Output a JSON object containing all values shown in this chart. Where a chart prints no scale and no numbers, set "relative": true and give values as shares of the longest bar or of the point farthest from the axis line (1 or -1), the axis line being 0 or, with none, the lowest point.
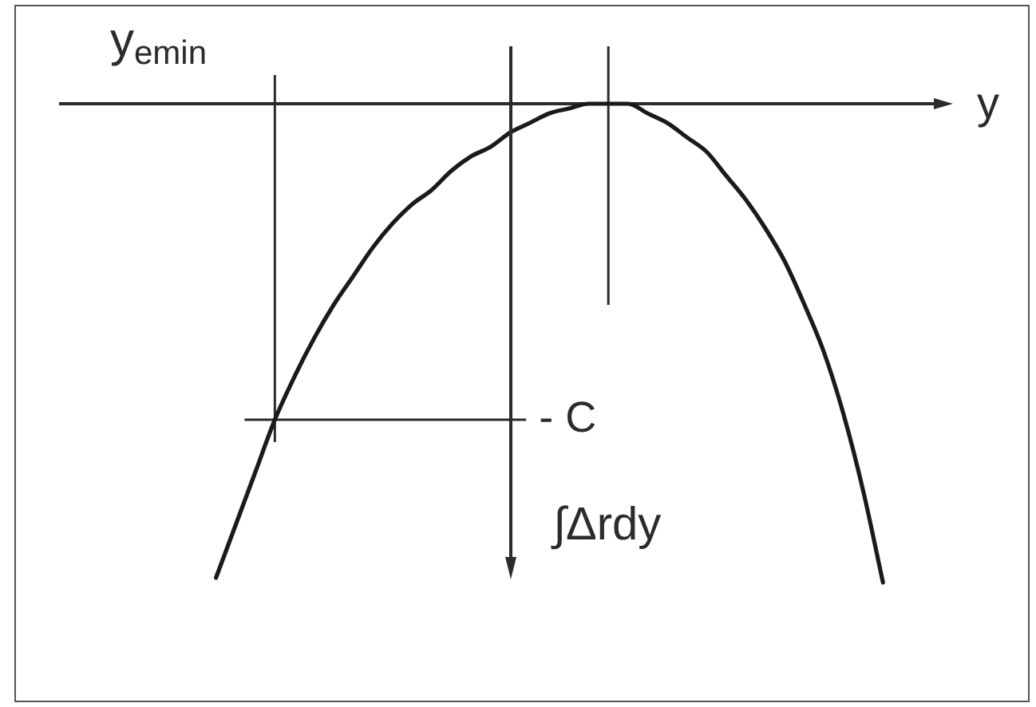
{
  "chart_data": {
    "type": "line",
    "relative": true,
    "xlabel": "y",
    "ylabel": "∫Δrdy",
    "annotations": [
      "y$_{emin}$"
    ],
    "categories": [
      null,
      null,
      null,
      null,
      null,
      null,
      null,
      null,
      null,
      null,
      null,
      null,
      null,
      null,
      null,
      null,
      null,
      null,
      null,
      null,
      null,
      null,
      null,
      null,
      null,
      null,
      null,
      null,
      null,
      null,
      null,
      null,
      null,
      null,
      null,
      null,
      null,
      null,
      null,
      null,
      null,
      null,
      null,
      null,
      null,
      null
    ],
    "series": [
      {
        "color": "#1a1a1a",
        "values": [
          null,
          null,
          null,
          null,
          null,
          null,
          null,
          null,
          -0.99,
          -0.88,
          -0.77,
          -0.66,
          -0.57,
          -0.49,
          -0.42,
          -0.36,
          -0.3,
          -0.25,
          -0.21,
          -0.18,
          -0.14,
          -0.11,
          -0.09,
          -0.06,
          -0.04,
          -0.02,
          -0.01,
          0,
          0,
          0,
          -0.02,
          -0.04,
          -0.07,
          -0.1,
          -0.15,
          -0.2,
          -0.26,
          -0.33,
          -0.42,
          -0.52,
          -0.65,
          -0.81,
          -1,
          null,
          null,
          null
        ]
      }
    ],
    "ref_lines": [
      {
        "axis": "y",
        "value": -0.66,
        "label": "- C"
      }
    ],
    "marker": "none",
    "legend": false
  }
}
